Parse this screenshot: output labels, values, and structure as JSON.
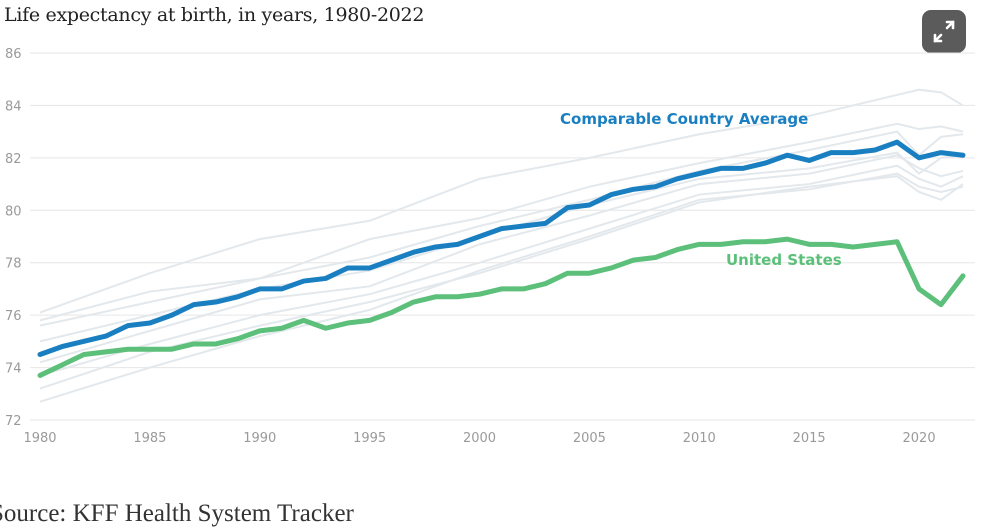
{
  "title": "Life expectancy at birth, in years, 1980-2022",
  "source": "Source: KFF Health System Tracker",
  "expand_icon": "expand-arrows-icon",
  "chart_data": {
    "type": "line",
    "title": "Life expectancy at birth, in years, 1980-2022",
    "xlabel": "",
    "ylabel": "",
    "xlim": [
      1980,
      2022
    ],
    "ylim": [
      72,
      86
    ],
    "yticks": [
      72,
      74,
      76,
      78,
      80,
      82,
      84,
      86
    ],
    "xticks": [
      1980,
      1985,
      1990,
      1995,
      2000,
      2005,
      2010,
      2015,
      2020
    ],
    "grid": true,
    "x": [
      1980,
      1981,
      1982,
      1983,
      1984,
      1985,
      1986,
      1987,
      1988,
      1989,
      1990,
      1991,
      1992,
      1993,
      1994,
      1995,
      1996,
      1997,
      1998,
      1999,
      2000,
      2001,
      2002,
      2003,
      2004,
      2005,
      2006,
      2007,
      2008,
      2009,
      2010,
      2011,
      2012,
      2013,
      2014,
      2015,
      2016,
      2017,
      2018,
      2019,
      2020,
      2021,
      2022
    ],
    "series": [
      {
        "name": "Comparable Country Average",
        "color": "#1a7fc1",
        "values": [
          74.5,
          74.8,
          75.0,
          75.2,
          75.6,
          75.7,
          76.0,
          76.4,
          76.5,
          76.7,
          77.0,
          77.0,
          77.3,
          77.4,
          77.8,
          77.8,
          78.1,
          78.4,
          78.6,
          78.7,
          79.0,
          79.3,
          79.4,
          79.5,
          80.1,
          80.2,
          80.6,
          80.8,
          80.9,
          81.2,
          81.4,
          81.6,
          81.6,
          81.8,
          82.1,
          81.9,
          82.2,
          82.2,
          82.3,
          82.6,
          82.0,
          82.2,
          82.1
        ]
      },
      {
        "name": "United States",
        "color": "#5cbf7a",
        "values": [
          73.7,
          74.1,
          74.5,
          74.6,
          74.7,
          74.7,
          74.7,
          74.9,
          74.9,
          75.1,
          75.4,
          75.5,
          75.8,
          75.5,
          75.7,
          75.8,
          76.1,
          76.5,
          76.7,
          76.7,
          76.8,
          77.0,
          77.0,
          77.2,
          77.6,
          77.6,
          77.8,
          78.1,
          78.2,
          78.5,
          78.7,
          78.7,
          78.8,
          78.8,
          78.9,
          78.7,
          78.7,
          78.6,
          78.7,
          78.8,
          77.0,
          76.4,
          77.5
        ]
      }
    ],
    "background_series_color": "#e3e8ec",
    "background_x": [
      1980,
      1985,
      1990,
      1995,
      2000,
      2005,
      2010,
      2015,
      2019,
      2020,
      2021,
      2022
    ],
    "background_series": [
      [
        76.1,
        77.6,
        78.9,
        79.6,
        81.2,
        82.0,
        82.9,
        83.6,
        84.4,
        84.6,
        84.5,
        84.0
      ],
      [
        75.8,
        76.9,
        77.4,
        78.9,
        79.7,
        80.9,
        81.8,
        82.6,
        83.3,
        83.1,
        83.2,
        83.0
      ],
      [
        75.6,
        76.5,
        77.4,
        78.2,
        79.4,
        80.4,
        81.5,
        82.3,
        83.0,
        82.1,
        82.8,
        82.9
      ],
      [
        75.0,
        76.0,
        77.0,
        77.7,
        79.0,
        80.2,
        81.2,
        81.6,
        82.2,
        81.4,
        82.0,
        82.1
      ],
      [
        74.2,
        75.4,
        76.6,
        77.1,
        78.7,
        79.8,
        81.0,
        81.4,
        82.1,
        81.6,
        81.3,
        81.5
      ],
      [
        73.7,
        74.9,
        76.0,
        76.8,
        78.0,
        79.3,
        80.6,
        81.0,
        81.7,
        81.2,
        80.9,
        81.3
      ],
      [
        73.2,
        74.6,
        75.6,
        76.5,
        77.6,
        78.9,
        80.3,
        80.9,
        81.3,
        80.7,
        80.4,
        81.0
      ],
      [
        72.7,
        74.0,
        75.2,
        76.2,
        77.7,
        79.0,
        80.4,
        80.8,
        81.4,
        80.9,
        80.7,
        80.9
      ]
    ]
  }
}
